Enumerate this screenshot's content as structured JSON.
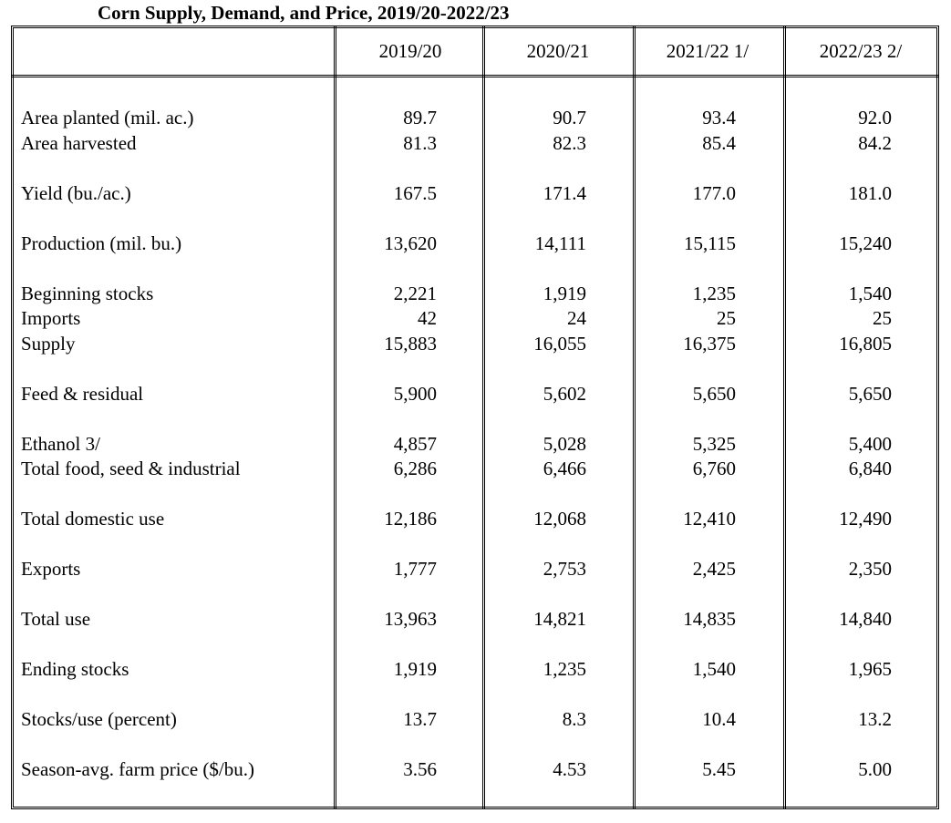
{
  "title": "Corn Supply, Demand, and Price, 2019/20-2022/23",
  "table": {
    "columns": [
      "2019/20",
      "2020/21",
      "2021/22 1/",
      "2022/23 2/"
    ],
    "groups": [
      [
        {
          "label": "Area planted (mil. ac.)",
          "values": [
            "89.7",
            "90.7",
            "93.4",
            "92.0"
          ]
        },
        {
          "label": "Area harvested",
          "values": [
            "81.3",
            "82.3",
            "85.4",
            "84.2"
          ]
        }
      ],
      [
        {
          "label": "Yield (bu./ac.)",
          "values": [
            "167.5",
            "171.4",
            "177.0",
            "181.0"
          ]
        }
      ],
      [
        {
          "label": "Production (mil. bu.)",
          "values": [
            "13,620",
            "14,111",
            "15,115",
            "15,240"
          ]
        }
      ],
      [
        {
          "label": "Beginning stocks",
          "values": [
            "2,221",
            "1,919",
            "1,235",
            "1,540"
          ]
        },
        {
          "label": "Imports",
          "values": [
            "42",
            "24",
            "25",
            "25"
          ]
        },
        {
          "label": "Supply",
          "values": [
            "15,883",
            "16,055",
            "16,375",
            "16,805"
          ]
        }
      ],
      [
        {
          "label": "Feed & residual",
          "values": [
            "5,900",
            "5,602",
            "5,650",
            "5,650"
          ]
        }
      ],
      [
        {
          "label": "Ethanol 3/",
          "values": [
            "4,857",
            "5,028",
            "5,325",
            "5,400"
          ]
        },
        {
          "label": "Total food, seed & industrial",
          "values": [
            "6,286",
            "6,466",
            "6,760",
            "6,840"
          ]
        }
      ],
      [
        {
          "label": "Total domestic use",
          "values": [
            "12,186",
            "12,068",
            "12,410",
            "12,490"
          ]
        }
      ],
      [
        {
          "label": "Exports",
          "values": [
            "1,777",
            "2,753",
            "2,425",
            "2,350"
          ]
        }
      ],
      [
        {
          "label": "Total use",
          "values": [
            "13,963",
            "14,821",
            "14,835",
            "14,840"
          ]
        }
      ],
      [
        {
          "label": "Ending stocks",
          "values": [
            "1,919",
            "1,235",
            "1,540",
            "1,965"
          ]
        }
      ],
      [
        {
          "label": "Stocks/use (percent)",
          "values": [
            "13.7",
            "8.3",
            "10.4",
            "13.2"
          ]
        }
      ],
      [
        {
          "label": "Season-avg. farm price ($/bu.)",
          "values": [
            "3.56",
            "4.53",
            "5.45",
            "5.00"
          ]
        }
      ]
    ]
  }
}
